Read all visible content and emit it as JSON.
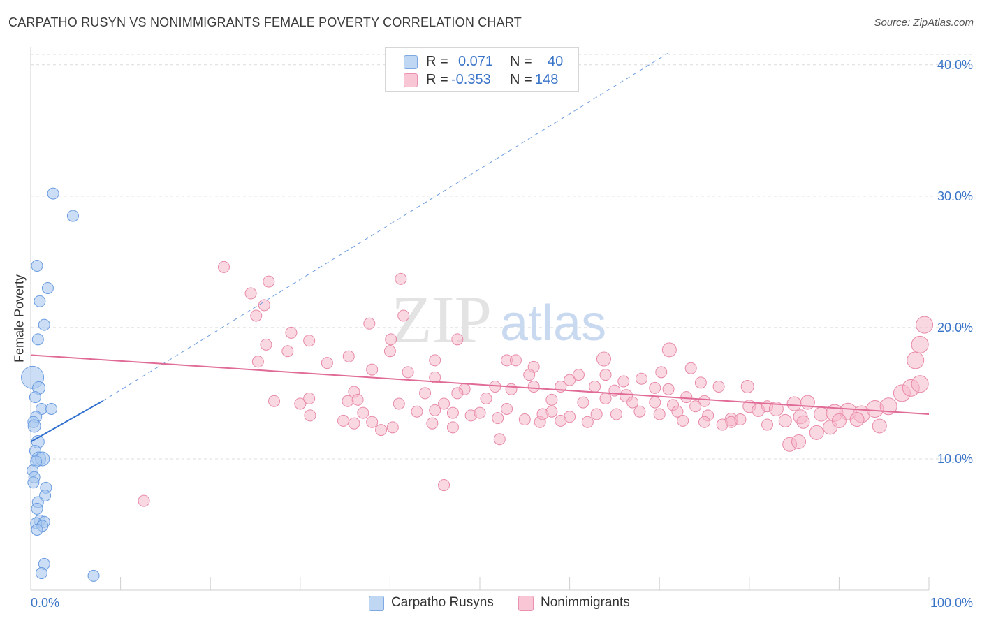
{
  "header": {
    "title": "CARPATHO RUSYN VS NONIMMIGRANTS FEMALE POVERTY CORRELATION CHART",
    "source": "Source: ZipAtlas.com"
  },
  "legend": {
    "rows": [
      {
        "r_label": "R =",
        "r_value": "0.071",
        "n_label": "N =",
        "n_value": "40"
      },
      {
        "r_label": "R =",
        "r_value": "-0.353",
        "n_label": "N =",
        "n_value": "148"
      }
    ]
  },
  "watermark": {
    "zip": "ZIP",
    "atlas": "atlas"
  },
  "colors": {
    "blue_fill": "#a9c8ef",
    "blue_stroke": "#6a9be0",
    "blue_line": "#2f6fcf",
    "pink_fill": "#f6b8cb",
    "pink_stroke": "#e88aa8",
    "pink_line": "#e06b96",
    "axis_label": "#3a74c8",
    "grid": "#dcdcdc"
  },
  "chart_data": {
    "type": "scatter",
    "title": "CARPATHO RUSYN VS NONIMMIGRANTS FEMALE POVERTY CORRELATION CHART",
    "xlabel": "",
    "ylabel": "Female Poverty",
    "xlim": [
      0,
      100
    ],
    "ylim": [
      0,
      41
    ],
    "x_tick_labels": [
      "0.0%",
      "100.0%"
    ],
    "y_ticks": [
      10,
      20,
      30,
      40
    ],
    "y_tick_labels": [
      "10.0%",
      "20.0%",
      "30.0%",
      "40.0%"
    ],
    "grid": true,
    "legend_position": "top-center",
    "series": [
      {
        "name": "Carpatho Rusyns",
        "r": 0.071,
        "n": 40,
        "trend": {
          "x0": 0,
          "y0": 11.3,
          "x1": 8,
          "y1": 14.4,
          "extend_to_x": 71,
          "extend_to_y": 40.9
        },
        "points": [
          [
            0.2,
            16.2,
            16
          ],
          [
            2.5,
            30.2,
            8
          ],
          [
            4.7,
            28.5,
            8
          ],
          [
            0.7,
            24.7,
            8
          ],
          [
            1.9,
            23.0,
            8
          ],
          [
            1.0,
            22.0,
            8
          ],
          [
            1.5,
            20.2,
            8
          ],
          [
            0.8,
            19.1,
            8
          ],
          [
            0.9,
            15.4,
            9
          ],
          [
            0.5,
            14.7,
            8
          ],
          [
            1.2,
            13.8,
            8
          ],
          [
            2.3,
            13.8,
            8
          ],
          [
            0.6,
            13.2,
            8
          ],
          [
            0.3,
            12.8,
            8
          ],
          [
            0.4,
            12.5,
            9
          ],
          [
            0.8,
            11.3,
            9
          ],
          [
            0.5,
            10.6,
            8
          ],
          [
            0.9,
            10.0,
            10
          ],
          [
            1.3,
            10.0,
            10
          ],
          [
            0.6,
            9.8,
            8
          ],
          [
            0.2,
            9.1,
            8
          ],
          [
            0.4,
            8.6,
            8
          ],
          [
            0.3,
            8.2,
            8
          ],
          [
            1.7,
            7.8,
            8
          ],
          [
            1.6,
            7.2,
            8
          ],
          [
            0.8,
            6.7,
            8
          ],
          [
            0.7,
            6.2,
            8
          ],
          [
            1.0,
            5.3,
            8
          ],
          [
            1.5,
            5.2,
            8
          ],
          [
            0.6,
            5.1,
            8
          ],
          [
            1.3,
            4.9,
            8
          ],
          [
            0.7,
            4.6,
            8
          ],
          [
            1.5,
            2.0,
            8
          ],
          [
            1.2,
            1.3,
            8
          ],
          [
            7.0,
            1.1,
            8
          ]
        ]
      },
      {
        "name": "Nonimmigrants",
        "r": -0.353,
        "n": 148,
        "trend": {
          "x0": 0,
          "y0": 17.9,
          "x1": 100,
          "y1": 13.4
        },
        "points": [
          [
            21.5,
            24.6,
            8
          ],
          [
            26.5,
            23.5,
            8
          ],
          [
            41.2,
            23.7,
            8
          ],
          [
            24.5,
            22.6,
            8
          ],
          [
            26.0,
            21.7,
            8
          ],
          [
            25.1,
            20.9,
            8
          ],
          [
            41.5,
            20.9,
            8
          ],
          [
            37.7,
            20.3,
            8
          ],
          [
            29.0,
            19.6,
            8
          ],
          [
            31.0,
            19.0,
            8
          ],
          [
            40.1,
            19.1,
            8
          ],
          [
            47.5,
            19.1,
            8
          ],
          [
            26.2,
            18.7,
            8
          ],
          [
            28.6,
            18.2,
            8
          ],
          [
            40.0,
            18.2,
            8
          ],
          [
            35.4,
            17.8,
            8
          ],
          [
            45.0,
            17.5,
            8
          ],
          [
            25.3,
            17.4,
            8
          ],
          [
            33.0,
            17.3,
            8
          ],
          [
            53.0,
            17.5,
            8
          ],
          [
            54.0,
            17.5,
            8
          ],
          [
            56.0,
            17.0,
            8
          ],
          [
            63.8,
            17.6,
            10
          ],
          [
            71.1,
            18.3,
            10
          ],
          [
            73.5,
            16.9,
            8
          ],
          [
            70.2,
            16.6,
            8
          ],
          [
            38.0,
            16.8,
            8
          ],
          [
            42.0,
            16.6,
            8
          ],
          [
            45.0,
            16.2,
            8
          ],
          [
            55.5,
            16.4,
            8
          ],
          [
            60.0,
            16.0,
            8
          ],
          [
            61.0,
            16.4,
            8
          ],
          [
            64.0,
            16.4,
            8
          ],
          [
            66.0,
            15.9,
            8
          ],
          [
            68.0,
            16.1,
            8
          ],
          [
            74.6,
            15.8,
            8
          ],
          [
            48.3,
            15.3,
            8
          ],
          [
            51.7,
            15.5,
            8
          ],
          [
            53.5,
            15.3,
            8
          ],
          [
            56.0,
            15.5,
            8
          ],
          [
            59.0,
            15.5,
            8
          ],
          [
            62.8,
            15.5,
            8
          ],
          [
            65.0,
            15.2,
            8
          ],
          [
            69.5,
            15.4,
            8
          ],
          [
            71.0,
            15.3,
            8
          ],
          [
            76.6,
            15.5,
            8
          ],
          [
            79.8,
            15.5,
            9
          ],
          [
            36.0,
            15.1,
            8
          ],
          [
            43.9,
            15.0,
            8
          ],
          [
            47.5,
            15.0,
            8
          ],
          [
            64.0,
            14.6,
            8
          ],
          [
            66.3,
            14.8,
            9
          ],
          [
            73.0,
            14.7,
            8
          ],
          [
            75.0,
            14.4,
            8
          ],
          [
            27.1,
            14.4,
            8
          ],
          [
            30.0,
            14.2,
            8
          ],
          [
            31.0,
            14.6,
            8
          ],
          [
            35.3,
            14.4,
            8
          ],
          [
            36.4,
            14.5,
            8
          ],
          [
            41.0,
            14.2,
            8
          ],
          [
            46.0,
            14.2,
            8
          ],
          [
            50.7,
            14.6,
            8
          ],
          [
            58.0,
            14.5,
            8
          ],
          [
            61.5,
            14.3,
            8
          ],
          [
            67.0,
            14.3,
            8
          ],
          [
            69.5,
            14.3,
            8
          ],
          [
            71.5,
            14.1,
            8
          ],
          [
            74.0,
            14.0,
            8
          ],
          [
            80.0,
            14.0,
            9
          ],
          [
            81.0,
            13.7,
            9
          ],
          [
            82.0,
            14.0,
            8
          ],
          [
            85.0,
            14.2,
            10
          ],
          [
            86.5,
            14.3,
            10
          ],
          [
            31.1,
            13.3,
            8
          ],
          [
            43.0,
            13.6,
            8
          ],
          [
            45.0,
            13.7,
            8
          ],
          [
            47.0,
            13.5,
            8
          ],
          [
            49.0,
            13.3,
            8
          ],
          [
            53.0,
            13.8,
            8
          ],
          [
            55.0,
            13.0,
            8
          ],
          [
            58.0,
            13.6,
            8
          ],
          [
            60.0,
            13.2,
            8
          ],
          [
            63.0,
            13.4,
            8
          ],
          [
            65.2,
            13.4,
            8
          ],
          [
            67.8,
            13.6,
            8
          ],
          [
            70.0,
            13.4,
            8
          ],
          [
            72.0,
            13.6,
            8
          ],
          [
            75.4,
            13.3,
            8
          ],
          [
            78.0,
            13.0,
            9
          ],
          [
            83.0,
            13.8,
            10
          ],
          [
            85.7,
            13.2,
            10
          ],
          [
            88.0,
            13.4,
            10
          ],
          [
            89.5,
            13.5,
            12
          ],
          [
            91.0,
            13.6,
            12
          ],
          [
            92.5,
            13.4,
            12
          ],
          [
            94.0,
            13.8,
            12
          ],
          [
            95.5,
            14.0,
            12
          ],
          [
            97.0,
            15.0,
            12
          ],
          [
            98.0,
            15.4,
            12
          ],
          [
            99.0,
            15.7,
            12
          ],
          [
            98.5,
            17.5,
            12
          ],
          [
            99.0,
            18.7,
            12
          ],
          [
            99.5,
            20.2,
            12
          ],
          [
            34.8,
            12.9,
            8
          ],
          [
            36.0,
            12.7,
            8
          ],
          [
            38.0,
            12.8,
            8
          ],
          [
            39.0,
            12.2,
            8
          ],
          [
            40.3,
            12.4,
            8
          ],
          [
            44.7,
            12.7,
            8
          ],
          [
            47.0,
            12.4,
            8
          ],
          [
            52.0,
            13.1,
            8
          ],
          [
            56.7,
            12.8,
            8
          ],
          [
            59.0,
            12.9,
            8
          ],
          [
            62.0,
            12.8,
            8
          ],
          [
            72.6,
            12.9,
            8
          ],
          [
            75.0,
            12.8,
            8
          ],
          [
            77.0,
            12.6,
            8
          ],
          [
            78.0,
            12.8,
            8
          ],
          [
            79.0,
            13.0,
            8
          ],
          [
            82.0,
            12.6,
            8
          ],
          [
            84.0,
            12.9,
            9
          ],
          [
            86.0,
            12.8,
            9
          ],
          [
            87.5,
            12.0,
            10
          ],
          [
            89.0,
            12.4,
            10
          ],
          [
            90.0,
            12.9,
            10
          ],
          [
            92.0,
            13.0,
            10
          ],
          [
            94.5,
            12.5,
            10
          ],
          [
            84.5,
            11.1,
            10
          ],
          [
            85.5,
            11.3,
            10
          ],
          [
            52.2,
            11.5,
            8
          ],
          [
            46.0,
            8.0,
            8
          ],
          [
            12.6,
            6.8,
            8
          ],
          [
            37.0,
            13.5,
            8
          ],
          [
            50.0,
            13.5,
            8
          ],
          [
            57.0,
            13.4,
            8
          ]
        ]
      }
    ]
  },
  "bottom_legend": {
    "items": [
      {
        "label": "Carpatho Rusyns"
      },
      {
        "label": "Nonimmigrants"
      }
    ]
  }
}
